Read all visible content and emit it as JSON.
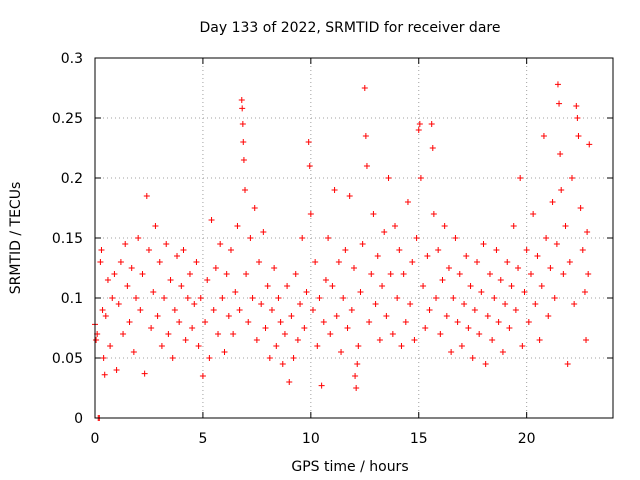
{
  "chart_data": {
    "type": "scatter",
    "title": "Day 133 of 2022, SRMTID for receiver dare",
    "xlabel": "GPS time / hours",
    "ylabel": "SRMTID / TECUs",
    "xlim": [
      0,
      24
    ],
    "ylim": [
      0,
      0.3
    ],
    "xticks": [
      0,
      5,
      10,
      15,
      20
    ],
    "xtick_labels": [
      "0",
      "5",
      "10",
      "15",
      "20"
    ],
    "yticks": [
      0,
      0.05,
      0.1,
      0.15,
      0.2,
      0.25,
      0.3
    ],
    "ytick_labels": [
      "0",
      "0.05",
      "0.1",
      "0.15",
      "0.2",
      "0.25",
      "0.3"
    ],
    "grid": true,
    "marker": "plus",
    "series_color": "#ff0000",
    "series": [
      {
        "name": "SRMTID",
        "points": [
          [
            0.0,
            0.078
          ],
          [
            0.05,
            0.065
          ],
          [
            0.1,
            0.07
          ],
          [
            0.15,
            0.0
          ],
          [
            0.2,
            0.0
          ],
          [
            0.25,
            0.13
          ],
          [
            0.3,
            0.14
          ],
          [
            0.35,
            0.09
          ],
          [
            0.4,
            0.05
          ],
          [
            0.45,
            0.036
          ],
          [
            0.5,
            0.085
          ],
          [
            0.6,
            0.115
          ],
          [
            0.7,
            0.06
          ],
          [
            0.8,
            0.1
          ],
          [
            0.9,
            0.12
          ],
          [
            1.0,
            0.04
          ],
          [
            1.1,
            0.095
          ],
          [
            1.2,
            0.13
          ],
          [
            1.3,
            0.07
          ],
          [
            1.4,
            0.145
          ],
          [
            1.5,
            0.11
          ],
          [
            1.6,
            0.08
          ],
          [
            1.7,
            0.125
          ],
          [
            1.8,
            0.055
          ],
          [
            1.9,
            0.1
          ],
          [
            2.0,
            0.15
          ],
          [
            2.1,
            0.09
          ],
          [
            2.2,
            0.12
          ],
          [
            2.3,
            0.037
          ],
          [
            2.4,
            0.185
          ],
          [
            2.5,
            0.14
          ],
          [
            2.6,
            0.075
          ],
          [
            2.7,
            0.105
          ],
          [
            2.8,
            0.16
          ],
          [
            2.9,
            0.085
          ],
          [
            3.0,
            0.13
          ],
          [
            3.1,
            0.06
          ],
          [
            3.2,
            0.1
          ],
          [
            3.3,
            0.145
          ],
          [
            3.4,
            0.07
          ],
          [
            3.5,
            0.115
          ],
          [
            3.6,
            0.05
          ],
          [
            3.7,
            0.09
          ],
          [
            3.8,
            0.135
          ],
          [
            3.9,
            0.08
          ],
          [
            4.0,
            0.11
          ],
          [
            4.1,
            0.14
          ],
          [
            4.2,
            0.065
          ],
          [
            4.3,
            0.1
          ],
          [
            4.4,
            0.12
          ],
          [
            4.5,
            0.075
          ],
          [
            4.6,
            0.095
          ],
          [
            4.7,
            0.13
          ],
          [
            4.8,
            0.06
          ],
          [
            4.9,
            0.1
          ],
          [
            5.0,
            0.035
          ],
          [
            5.1,
            0.08
          ],
          [
            5.2,
            0.115
          ],
          [
            5.3,
            0.05
          ],
          [
            5.4,
            0.165
          ],
          [
            5.5,
            0.09
          ],
          [
            5.6,
            0.125
          ],
          [
            5.7,
            0.07
          ],
          [
            5.8,
            0.145
          ],
          [
            5.9,
            0.1
          ],
          [
            6.0,
            0.055
          ],
          [
            6.1,
            0.12
          ],
          [
            6.2,
            0.085
          ],
          [
            6.3,
            0.14
          ],
          [
            6.4,
            0.07
          ],
          [
            6.5,
            0.105
          ],
          [
            6.6,
            0.16
          ],
          [
            6.7,
            0.09
          ],
          [
            6.8,
            0.265
          ],
          [
            6.82,
            0.258
          ],
          [
            6.85,
            0.245
          ],
          [
            6.87,
            0.23
          ],
          [
            6.9,
            0.215
          ],
          [
            6.95,
            0.19
          ],
          [
            7.0,
            0.12
          ],
          [
            7.1,
            0.08
          ],
          [
            7.2,
            0.15
          ],
          [
            7.3,
            0.1
          ],
          [
            7.4,
            0.175
          ],
          [
            7.5,
            0.065
          ],
          [
            7.6,
            0.13
          ],
          [
            7.7,
            0.095
          ],
          [
            7.8,
            0.155
          ],
          [
            7.9,
            0.075
          ],
          [
            8.0,
            0.11
          ],
          [
            8.1,
            0.05
          ],
          [
            8.2,
            0.09
          ],
          [
            8.3,
            0.125
          ],
          [
            8.4,
            0.06
          ],
          [
            8.5,
            0.1
          ],
          [
            8.6,
            0.08
          ],
          [
            8.7,
            0.045
          ],
          [
            8.8,
            0.07
          ],
          [
            8.9,
            0.11
          ],
          [
            9.0,
            0.03
          ],
          [
            9.1,
            0.085
          ],
          [
            9.2,
            0.05
          ],
          [
            9.3,
            0.12
          ],
          [
            9.4,
            0.065
          ],
          [
            9.5,
            0.095
          ],
          [
            9.6,
            0.15
          ],
          [
            9.7,
            0.075
          ],
          [
            9.8,
            0.105
          ],
          [
            9.9,
            0.23
          ],
          [
            9.95,
            0.21
          ],
          [
            10.0,
            0.17
          ],
          [
            10.1,
            0.09
          ],
          [
            10.2,
            0.13
          ],
          [
            10.3,
            0.06
          ],
          [
            10.4,
            0.1
          ],
          [
            10.5,
            0.027
          ],
          [
            10.6,
            0.08
          ],
          [
            10.7,
            0.115
          ],
          [
            10.8,
            0.15
          ],
          [
            10.9,
            0.07
          ],
          [
            11.0,
            0.11
          ],
          [
            11.1,
            0.19
          ],
          [
            11.2,
            0.085
          ],
          [
            11.3,
            0.13
          ],
          [
            11.4,
            0.055
          ],
          [
            11.5,
            0.1
          ],
          [
            11.6,
            0.14
          ],
          [
            11.7,
            0.075
          ],
          [
            11.8,
            0.185
          ],
          [
            11.9,
            0.09
          ],
          [
            12.0,
            0.125
          ],
          [
            12.05,
            0.035
          ],
          [
            12.1,
            0.025
          ],
          [
            12.15,
            0.045
          ],
          [
            12.2,
            0.06
          ],
          [
            12.3,
            0.105
          ],
          [
            12.4,
            0.145
          ],
          [
            12.5,
            0.275
          ],
          [
            12.55,
            0.235
          ],
          [
            12.6,
            0.21
          ],
          [
            12.7,
            0.08
          ],
          [
            12.8,
            0.12
          ],
          [
            12.9,
            0.17
          ],
          [
            13.0,
            0.095
          ],
          [
            13.1,
            0.135
          ],
          [
            13.2,
            0.065
          ],
          [
            13.3,
            0.11
          ],
          [
            13.4,
            0.155
          ],
          [
            13.5,
            0.085
          ],
          [
            13.6,
            0.2
          ],
          [
            13.7,
            0.12
          ],
          [
            13.8,
            0.07
          ],
          [
            13.9,
            0.16
          ],
          [
            14.0,
            0.1
          ],
          [
            14.1,
            0.14
          ],
          [
            14.2,
            0.06
          ],
          [
            14.3,
            0.12
          ],
          [
            14.4,
            0.08
          ],
          [
            14.5,
            0.18
          ],
          [
            14.6,
            0.095
          ],
          [
            14.7,
            0.13
          ],
          [
            14.8,
            0.065
          ],
          [
            14.9,
            0.15
          ],
          [
            15.0,
            0.24
          ],
          [
            15.05,
            0.245
          ],
          [
            15.1,
            0.2
          ],
          [
            15.2,
            0.11
          ],
          [
            15.3,
            0.075
          ],
          [
            15.4,
            0.135
          ],
          [
            15.5,
            0.09
          ],
          [
            15.6,
            0.245
          ],
          [
            15.65,
            0.225
          ],
          [
            15.7,
            0.17
          ],
          [
            15.8,
            0.1
          ],
          [
            15.9,
            0.14
          ],
          [
            16.0,
            0.07
          ],
          [
            16.1,
            0.115
          ],
          [
            16.2,
            0.16
          ],
          [
            16.3,
            0.085
          ],
          [
            16.4,
            0.125
          ],
          [
            16.5,
            0.055
          ],
          [
            16.6,
            0.1
          ],
          [
            16.7,
            0.15
          ],
          [
            16.8,
            0.08
          ],
          [
            16.9,
            0.12
          ],
          [
            17.0,
            0.06
          ],
          [
            17.1,
            0.095
          ],
          [
            17.2,
            0.135
          ],
          [
            17.3,
            0.075
          ],
          [
            17.4,
            0.11
          ],
          [
            17.5,
            0.05
          ],
          [
            17.6,
            0.09
          ],
          [
            17.7,
            0.13
          ],
          [
            17.8,
            0.07
          ],
          [
            17.9,
            0.105
          ],
          [
            18.0,
            0.145
          ],
          [
            18.1,
            0.045
          ],
          [
            18.2,
            0.085
          ],
          [
            18.3,
            0.12
          ],
          [
            18.4,
            0.065
          ],
          [
            18.5,
            0.1
          ],
          [
            18.6,
            0.14
          ],
          [
            18.7,
            0.08
          ],
          [
            18.8,
            0.115
          ],
          [
            18.9,
            0.055
          ],
          [
            19.0,
            0.095
          ],
          [
            19.1,
            0.13
          ],
          [
            19.2,
            0.075
          ],
          [
            19.3,
            0.11
          ],
          [
            19.4,
            0.16
          ],
          [
            19.5,
            0.09
          ],
          [
            19.6,
            0.125
          ],
          [
            19.7,
            0.2
          ],
          [
            19.8,
            0.06
          ],
          [
            19.9,
            0.105
          ],
          [
            20.0,
            0.14
          ],
          [
            20.1,
            0.08
          ],
          [
            20.2,
            0.12
          ],
          [
            20.3,
            0.17
          ],
          [
            20.4,
            0.095
          ],
          [
            20.5,
            0.135
          ],
          [
            20.6,
            0.065
          ],
          [
            20.7,
            0.11
          ],
          [
            20.8,
            0.235
          ],
          [
            20.9,
            0.15
          ],
          [
            21.0,
            0.085
          ],
          [
            21.1,
            0.125
          ],
          [
            21.2,
            0.18
          ],
          [
            21.3,
            0.1
          ],
          [
            21.4,
            0.145
          ],
          [
            21.45,
            0.278
          ],
          [
            21.5,
            0.262
          ],
          [
            21.55,
            0.22
          ],
          [
            21.6,
            0.19
          ],
          [
            21.7,
            0.12
          ],
          [
            21.8,
            0.16
          ],
          [
            21.9,
            0.045
          ],
          [
            22.0,
            0.13
          ],
          [
            22.1,
            0.2
          ],
          [
            22.2,
            0.095
          ],
          [
            22.3,
            0.26
          ],
          [
            22.35,
            0.25
          ],
          [
            22.4,
            0.235
          ],
          [
            22.5,
            0.175
          ],
          [
            22.6,
            0.14
          ],
          [
            22.7,
            0.105
          ],
          [
            22.75,
            0.065
          ],
          [
            22.8,
            0.155
          ],
          [
            22.85,
            0.12
          ],
          [
            22.9,
            0.228
          ]
        ]
      }
    ]
  }
}
